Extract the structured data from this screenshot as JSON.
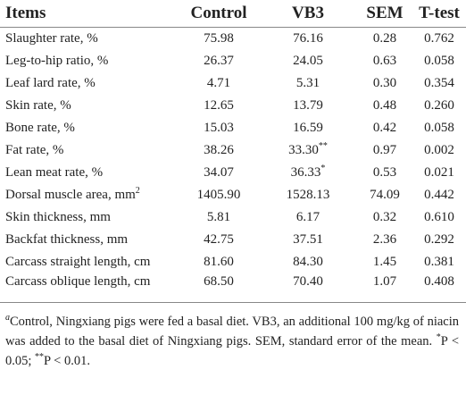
{
  "table": {
    "header": [
      "Items",
      "Control",
      "VB3",
      "SEM",
      "T-test"
    ],
    "rows": [
      [
        "Slaughter rate, %",
        "75.98",
        "76.16",
        "0.28",
        "0.762"
      ],
      [
        "Leg-to-hip ratio, %",
        "26.37",
        "24.05",
        "0.63",
        "0.058"
      ],
      [
        "Leaf lard rate, %",
        "4.71",
        "5.31",
        "0.30",
        "0.354"
      ],
      [
        "Skin rate, %",
        "12.65",
        "13.79",
        "0.48",
        "0.260"
      ],
      [
        "Bone rate, %",
        "15.03",
        "16.59",
        "0.42",
        "0.058"
      ],
      [
        "Fat rate, %",
        "38.26",
        {
          "text": "33.30",
          "sup": "**"
        },
        "0.97",
        "0.002"
      ],
      [
        "Lean meat rate, %",
        "34.07",
        {
          "text": "36.33",
          "sup": "*"
        },
        "0.53",
        "0.021"
      ],
      [
        {
          "text": "Dorsal muscle area, mm",
          "sup": "2"
        },
        "1405.90",
        "1528.13",
        "74.09",
        "0.442"
      ],
      [
        "Skin thickness, mm",
        "5.81",
        "6.17",
        "0.32",
        "0.610"
      ],
      [
        "Backfat thickness, mm",
        "42.75",
        "37.51",
        "2.36",
        "0.292"
      ],
      [
        "Carcass straight length, cm",
        "81.60",
        "84.30",
        "1.45",
        "0.381"
      ],
      [
        "Carcass oblique length, cm",
        "68.50",
        "70.40",
        "1.07",
        "0.408"
      ]
    ]
  },
  "footnote": [
    {
      "sup": "a"
    },
    {
      "text": "Control, Ningxiang pigs were fed a basal diet. VB3, an additional 100 mg/kg of niacin was added to the basal diet of Ningxiang pigs. SEM, standard error of the mean. "
    },
    {
      "sup": "*"
    },
    {
      "text": "P < 0.05; "
    },
    {
      "sup": "**"
    },
    {
      "text": "P < 0.01."
    }
  ]
}
